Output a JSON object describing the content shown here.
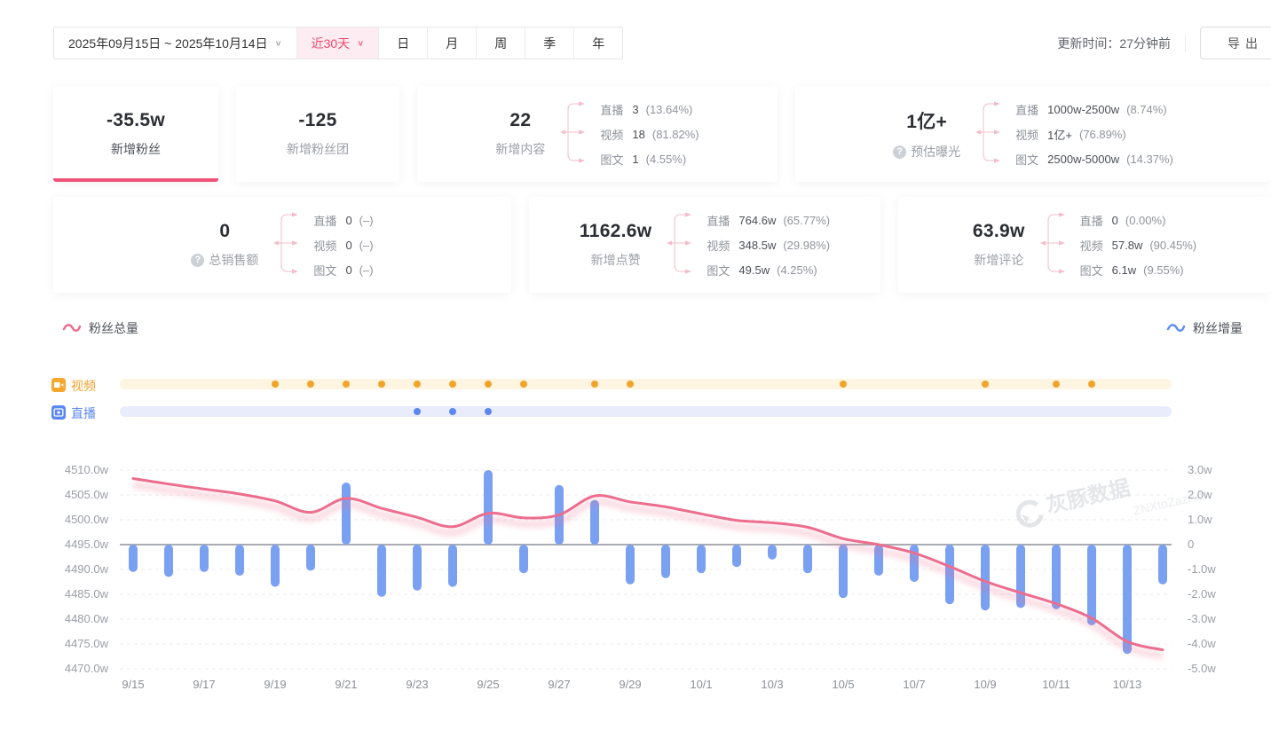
{
  "toolbar": {
    "date_range": "2025年09月15日 ~ 2025年10月14日",
    "quick_range": "近30天",
    "period_tabs": [
      "日",
      "月",
      "周",
      "季",
      "年"
    ],
    "update_time": "更新时间：27分钟前",
    "export_label": "导出"
  },
  "kpi_cards": [
    {
      "key": "new-fans",
      "value": "-35.5w",
      "label": "新增粉丝",
      "active": true,
      "help": false,
      "breakdown": []
    },
    {
      "key": "new-fans-club",
      "value": "-125",
      "label": "新增粉丝团",
      "active": false,
      "help": false,
      "breakdown": []
    },
    {
      "key": "new-content",
      "value": "22",
      "label": "新增内容",
      "active": false,
      "help": false,
      "breakdown": [
        {
          "name": "直播",
          "value": "3",
          "percent": "(13.64%)"
        },
        {
          "name": "视频",
          "value": "18",
          "percent": "(81.82%)"
        },
        {
          "name": "图文",
          "value": "1",
          "percent": "(4.55%)"
        }
      ]
    },
    {
      "key": "est-exposure",
      "value": "1亿+",
      "label": "预估曝光",
      "active": false,
      "help": true,
      "breakdown": [
        {
          "name": "直播",
          "value": "1000w-2500w",
          "percent": "(8.74%)"
        },
        {
          "name": "视频",
          "value": "1亿+",
          "percent": "(76.89%)"
        },
        {
          "name": "图文",
          "value": "2500w-5000w",
          "percent": "(14.37%)"
        }
      ]
    },
    {
      "key": "total-sales",
      "value": "0",
      "label": "总销售额",
      "active": false,
      "help": true,
      "breakdown": [
        {
          "name": "直播",
          "value": "0",
          "percent": "(–)"
        },
        {
          "name": "视频",
          "value": "0",
          "percent": "(–)"
        },
        {
          "name": "图文",
          "value": "0",
          "percent": "(–)"
        }
      ]
    },
    {
      "key": "new-likes",
      "value": "1162.6w",
      "label": "新增点赞",
      "active": false,
      "help": false,
      "breakdown": [
        {
          "name": "直播",
          "value": "764.6w",
          "percent": "(65.77%)"
        },
        {
          "name": "视频",
          "value": "348.5w",
          "percent": "(29.98%)"
        },
        {
          "name": "图文",
          "value": "49.5w",
          "percent": "(4.25%)"
        }
      ]
    },
    {
      "key": "new-comments",
      "value": "63.9w",
      "label": "新增评论",
      "active": false,
      "help": false,
      "breakdown": [
        {
          "name": "直播",
          "value": "0",
          "percent": "(0.00%)"
        },
        {
          "name": "视频",
          "value": "57.8w",
          "percent": "(90.45%)"
        },
        {
          "name": "图文",
          "value": "6.1w",
          "percent": "(9.55%)"
        }
      ]
    }
  ],
  "legend": {
    "total_label": "粉丝总量",
    "total_color": "#ec6d8e",
    "delta_label": "粉丝增量",
    "delta_color": "#5f8ef5"
  },
  "timeline": {
    "rows": [
      {
        "key": "video",
        "label": "视频",
        "icon": "video-icon",
        "label_color": "#f0a32a",
        "track_color": "#fdf5e1",
        "dot_color": "#f0a42a",
        "dates": [
          "9/19",
          "9/20",
          "9/21",
          "9/22",
          "9/23",
          "9/24",
          "9/25",
          "9/26",
          "9/28",
          "9/29",
          "10/5",
          "10/9",
          "10/11",
          "10/12"
        ]
      },
      {
        "key": "live",
        "label": "直播",
        "icon": "live-icon",
        "label_color": "#5b87f0",
        "track_color": "#e9edfb",
        "dot_color": "#5b87f0",
        "dates": [
          "9/23",
          "9/24",
          "9/25"
        ]
      }
    ]
  },
  "watermark": {
    "text": "灰豚数据",
    "subtext": "ZNXtoZazAd"
  },
  "accent_colors": {
    "active_underline": "#f0527a",
    "quick_range_bg": "#fdecf1",
    "quick_range_text": "#f0486c"
  },
  "chart_data": {
    "type": "combo",
    "x": [
      "9/15",
      "9/16",
      "9/17",
      "9/18",
      "9/19",
      "9/20",
      "9/21",
      "9/22",
      "9/23",
      "9/24",
      "9/25",
      "9/26",
      "9/27",
      "9/28",
      "9/29",
      "9/30",
      "10/1",
      "10/2",
      "10/3",
      "10/4",
      "10/5",
      "10/6",
      "10/7",
      "10/8",
      "10/9",
      "10/10",
      "10/11",
      "10/12",
      "10/13",
      "10/14"
    ],
    "x_tick_labels": [
      "9/15",
      "9/17",
      "9/19",
      "9/21",
      "9/23",
      "9/25",
      "9/27",
      "9/29",
      "10/1",
      "10/3",
      "10/5",
      "10/7",
      "10/9",
      "10/11",
      "10/13"
    ],
    "series": [
      {
        "name": "粉丝总量",
        "type": "line",
        "axis": "left",
        "color": "#ec6d8e",
        "values": [
          4508.3,
          4507.2,
          4506.2,
          4505.2,
          4503.8,
          4501.5,
          4504.3,
          4502.3,
          4500.5,
          4498.6,
          4501.3,
          4500.4,
          4501.0,
          4504.8,
          4503.6,
          4502.6,
          4501.2,
          4499.9,
          4499.4,
          4498.5,
          4496.2,
          4495.0,
          4493.3,
          4490.6,
          4487.6,
          4485.3,
          4483.1,
          4480.2,
          4475.5,
          4473.8
        ]
      },
      {
        "name": "粉丝增量",
        "type": "bar",
        "axis": "right",
        "color": "#7aa0f2",
        "values": [
          -1.1,
          -1.3,
          -1.1,
          -1.25,
          -1.7,
          -1.05,
          2.5,
          -2.1,
          -1.85,
          -1.7,
          3.0,
          -1.15,
          2.4,
          1.8,
          -1.6,
          -1.35,
          -1.15,
          -0.9,
          -0.6,
          -1.15,
          -2.15,
          -1.25,
          -1.5,
          -2.4,
          -2.65,
          -2.55,
          -2.6,
          -3.25,
          -4.4,
          -1.6
        ]
      }
    ],
    "left_axis": {
      "min": 4470,
      "max": 4510,
      "ticks": [
        "4510.0w",
        "4505.0w",
        "4500.0w",
        "4495.0w",
        "4490.0w",
        "4485.0w",
        "4480.0w",
        "4475.0w",
        "4470.0w"
      ]
    },
    "right_axis": {
      "min": -5,
      "max": 3,
      "ticks": [
        "3.0w",
        "2.0w",
        "1.0w",
        "0",
        "-1.0w",
        "-2.0w",
        "-3.0w",
        "-4.0w",
        "-5.0w"
      ]
    },
    "grid": "dashed-horizontal",
    "zero_line_left_value": 4495,
    "legend_position": "top-left / top-right"
  }
}
